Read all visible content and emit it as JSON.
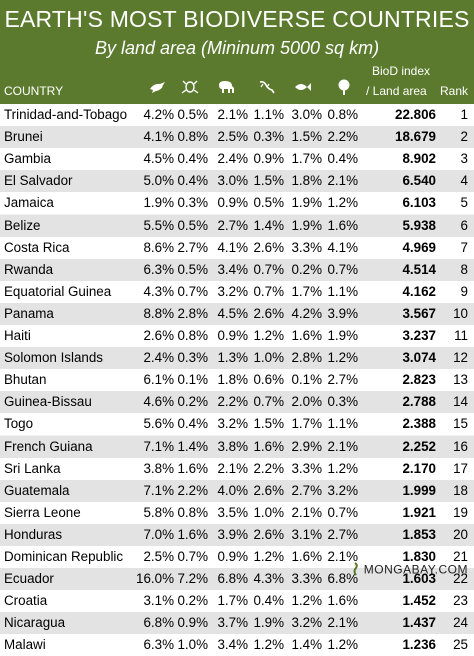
{
  "title": "EARTH'S MOST BIODIVERSE COUNTRIES",
  "subtitle": "By land area (Mininum 5000 sq km)",
  "columns": {
    "country": "COUNTRY",
    "biod_line1": "BioD index",
    "biod_line2": "/ Land area",
    "rank": "Rank"
  },
  "icons": [
    "bird-icon",
    "frog-icon",
    "elephant-icon",
    "lizard-icon",
    "fish-icon",
    "tree-icon"
  ],
  "colors": {
    "header_bg": "#5b7a2e",
    "row_odd": "#ffffff",
    "row_even": "#e3e3e3"
  },
  "rows": [
    {
      "country": "Trinidad-and-Tobago",
      "v1": "4.2%",
      "v2": "0.5%",
      "v3": "2.1%",
      "v4": "1.1%",
      "v5": "3.0%",
      "v6": "0.8%",
      "biod": "22.806",
      "rank": "1"
    },
    {
      "country": "Brunei",
      "v1": "4.1%",
      "v2": "0.8%",
      "v3": "2.5%",
      "v4": "0.3%",
      "v5": "1.5%",
      "v6": "2.2%",
      "biod": "18.679",
      "rank": "2"
    },
    {
      "country": "Gambia",
      "v1": "4.5%",
      "v2": "0.4%",
      "v3": "2.4%",
      "v4": "0.9%",
      "v5": "1.7%",
      "v6": "0.4%",
      "biod": "8.902",
      "rank": "3"
    },
    {
      "country": "El Salvador",
      "v1": "5.0%",
      "v2": "0.4%",
      "v3": "3.0%",
      "v4": "1.5%",
      "v5": "1.8%",
      "v6": "2.1%",
      "biod": "6.540",
      "rank": "4"
    },
    {
      "country": "Jamaica",
      "v1": "1.9%",
      "v2": "0.3%",
      "v3": "0.9%",
      "v4": "0.5%",
      "v5": "1.9%",
      "v6": "1.2%",
      "biod": "6.103",
      "rank": "5"
    },
    {
      "country": "Belize",
      "v1": "5.5%",
      "v2": "0.5%",
      "v3": "2.7%",
      "v4": "1.4%",
      "v5": "1.9%",
      "v6": "1.6%",
      "biod": "5.938",
      "rank": "6"
    },
    {
      "country": "Costa Rica",
      "v1": "8.6%",
      "v2": "2.7%",
      "v3": "4.1%",
      "v4": "2.6%",
      "v5": "3.3%",
      "v6": "4.1%",
      "biod": "4.969",
      "rank": "7"
    },
    {
      "country": "Rwanda",
      "v1": "6.3%",
      "v2": "0.5%",
      "v3": "3.4%",
      "v4": "0.7%",
      "v5": "0.2%",
      "v6": "0.7%",
      "biod": "4.514",
      "rank": "8"
    },
    {
      "country": "Equatorial Guinea",
      "v1": "4.3%",
      "v2": "0.7%",
      "v3": "3.2%",
      "v4": "0.7%",
      "v5": "1.7%",
      "v6": "1.1%",
      "biod": "4.162",
      "rank": "9"
    },
    {
      "country": "Panama",
      "v1": "8.8%",
      "v2": "2.8%",
      "v3": "4.5%",
      "v4": "2.6%",
      "v5": "4.2%",
      "v6": "3.9%",
      "biod": "3.567",
      "rank": "10"
    },
    {
      "country": "Haiti",
      "v1": "2.6%",
      "v2": "0.8%",
      "v3": "0.9%",
      "v4": "1.2%",
      "v5": "1.6%",
      "v6": "1.9%",
      "biod": "3.237",
      "rank": "11"
    },
    {
      "country": "Solomon Islands",
      "v1": "2.4%",
      "v2": "0.3%",
      "v3": "1.3%",
      "v4": "1.0%",
      "v5": "2.8%",
      "v6": "1.2%",
      "biod": "3.074",
      "rank": "12"
    },
    {
      "country": "Bhutan",
      "v1": "6.1%",
      "v2": "0.1%",
      "v3": "1.8%",
      "v4": "0.6%",
      "v5": "0.1%",
      "v6": "2.7%",
      "biod": "2.823",
      "rank": "13"
    },
    {
      "country": "Guinea-Bissau",
      "v1": "4.6%",
      "v2": "0.2%",
      "v3": "2.2%",
      "v4": "0.7%",
      "v5": "2.0%",
      "v6": "0.3%",
      "biod": "2.788",
      "rank": "14"
    },
    {
      "country": "Togo",
      "v1": "5.6%",
      "v2": "0.4%",
      "v3": "3.2%",
      "v4": "1.5%",
      "v5": "1.7%",
      "v6": "1.1%",
      "biod": "2.388",
      "rank": "15"
    },
    {
      "country": "French Guiana",
      "v1": "7.1%",
      "v2": "1.4%",
      "v3": "3.8%",
      "v4": "1.6%",
      "v5": "2.9%",
      "v6": "2.1%",
      "biod": "2.252",
      "rank": "16"
    },
    {
      "country": "Sri Lanka",
      "v1": "3.8%",
      "v2": "1.6%",
      "v3": "2.1%",
      "v4": "2.2%",
      "v5": "3.3%",
      "v6": "1.2%",
      "biod": "2.170",
      "rank": "17"
    },
    {
      "country": "Guatemala",
      "v1": "7.1%",
      "v2": "2.2%",
      "v3": "4.0%",
      "v4": "2.6%",
      "v5": "2.7%",
      "v6": "3.2%",
      "biod": "1.999",
      "rank": "18"
    },
    {
      "country": "Sierra Leone",
      "v1": "5.8%",
      "v2": "0.8%",
      "v3": "3.5%",
      "v4": "1.0%",
      "v5": "2.1%",
      "v6": "0.7%",
      "biod": "1.921",
      "rank": "19"
    },
    {
      "country": "Honduras",
      "v1": "7.0%",
      "v2": "1.6%",
      "v3": "3.9%",
      "v4": "2.6%",
      "v5": "3.1%",
      "v6": "2.7%",
      "biod": "1.853",
      "rank": "20"
    },
    {
      "country": "Dominican Republic",
      "v1": "2.5%",
      "v2": "0.7%",
      "v3": "0.9%",
      "v4": "1.2%",
      "v5": "1.6%",
      "v6": "2.1%",
      "biod": "1.830",
      "rank": "21"
    },
    {
      "country": "Ecuador",
      "v1": "16.0%",
      "v2": "7.2%",
      "v3": "6.8%",
      "v4": "4.3%",
      "v5": "3.3%",
      "v6": "6.8%",
      "biod": "1.603",
      "rank": "22"
    },
    {
      "country": "Croatia",
      "v1": "3.1%",
      "v2": "0.2%",
      "v3": "1.7%",
      "v4": "0.4%",
      "v5": "1.2%",
      "v6": "1.6%",
      "biod": "1.452",
      "rank": "23"
    },
    {
      "country": "Nicaragua",
      "v1": "6.8%",
      "v2": "0.9%",
      "v3": "3.7%",
      "v4": "1.9%",
      "v5": "3.2%",
      "v6": "2.1%",
      "biod": "1.437",
      "rank": "24"
    },
    {
      "country": "Malawi",
      "v1": "6.3%",
      "v2": "1.0%",
      "v3": "3.4%",
      "v4": "1.2%",
      "v5": "1.4%",
      "v6": "1.2%",
      "biod": "1.236",
      "rank": "25"
    }
  ],
  "footer": {
    "brand": "MONGABAY.COM"
  }
}
